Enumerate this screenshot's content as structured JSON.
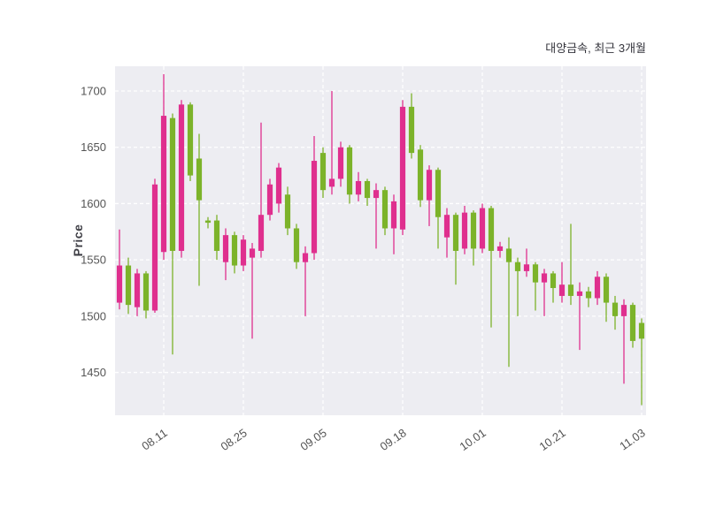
{
  "header": {
    "title": "대양금속, 최근 3개월"
  },
  "chart_data": {
    "type": "candlestick",
    "title": "대양금속, 최근 3개월",
    "xlabel": "",
    "ylabel": "Price",
    "ylim": [
      1412,
      1722
    ],
    "y_ticks": [
      1450,
      1500,
      1550,
      1600,
      1650,
      1700
    ],
    "x_tick_indices": [
      5,
      14,
      23,
      32,
      41,
      50,
      59
    ],
    "x_tick_labels": [
      "08.11",
      "08.25",
      "09.05",
      "09.18",
      "10.01",
      "10.21",
      "11.03"
    ],
    "grid": "on",
    "legend": "none",
    "colors": {
      "up": "#df2f8e",
      "down": "#7cb32a",
      "plot_bg": "#ededf2",
      "grid": "#ffffff",
      "tick_text": "#555555",
      "title_text": "#33333b"
    },
    "candles": [
      [
        "08.04",
        1512,
        1577,
        1506,
        1545
      ],
      [
        "08.05",
        1545,
        1552,
        1502,
        1510
      ],
      [
        "08.06",
        1508,
        1542,
        1500,
        1538
      ],
      [
        "08.07",
        1538,
        1540,
        1498,
        1505
      ],
      [
        "08.08",
        1505,
        1622,
        1503,
        1617
      ],
      [
        "08.11",
        1557,
        1715,
        1550,
        1678
      ],
      [
        "08.12",
        1676,
        1680,
        1466,
        1558
      ],
      [
        "08.13",
        1558,
        1692,
        1552,
        1688
      ],
      [
        "08.14",
        1688,
        1690,
        1620,
        1625
      ],
      [
        "08.18",
        1640,
        1662,
        1527,
        1603
      ],
      [
        "08.19",
        1585,
        1588,
        1578,
        1583
      ],
      [
        "08.20",
        1585,
        1590,
        1550,
        1558
      ],
      [
        "08.21",
        1548,
        1578,
        1532,
        1572
      ],
      [
        "08.22",
        1572,
        1575,
        1538,
        1545
      ],
      [
        "08.25",
        1545,
        1572,
        1540,
        1568
      ],
      [
        "08.26",
        1552,
        1565,
        1480,
        1560
      ],
      [
        "08.27",
        1558,
        1672,
        1552,
        1590
      ],
      [
        "08.28",
        1590,
        1622,
        1585,
        1617
      ],
      [
        "08.29",
        1600,
        1636,
        1592,
        1632
      ],
      [
        "09.01",
        1608,
        1615,
        1572,
        1578
      ],
      [
        "09.02",
        1578,
        1582,
        1542,
        1548
      ],
      [
        "09.03",
        1548,
        1562,
        1500,
        1556
      ],
      [
        "09.04",
        1556,
        1660,
        1550,
        1638
      ],
      [
        "09.05",
        1645,
        1650,
        1605,
        1612
      ],
      [
        "09.08",
        1615,
        1700,
        1608,
        1622
      ],
      [
        "09.09",
        1622,
        1655,
        1615,
        1650
      ],
      [
        "09.10",
        1650,
        1652,
        1600,
        1608
      ],
      [
        "09.11",
        1608,
        1628,
        1602,
        1620
      ],
      [
        "09.12",
        1620,
        1622,
        1598,
        1605
      ],
      [
        "09.15",
        1605,
        1618,
        1560,
        1612
      ],
      [
        "09.16",
        1612,
        1615,
        1572,
        1578
      ],
      [
        "09.17",
        1578,
        1608,
        1555,
        1602
      ],
      [
        "09.18",
        1577,
        1692,
        1572,
        1686
      ],
      [
        "09.19",
        1686,
        1698,
        1640,
        1645
      ],
      [
        "09.22",
        1648,
        1652,
        1597,
        1603
      ],
      [
        "09.23",
        1603,
        1634,
        1580,
        1630
      ],
      [
        "09.24",
        1630,
        1632,
        1560,
        1588
      ],
      [
        "09.25",
        1570,
        1596,
        1552,
        1590
      ],
      [
        "09.26",
        1590,
        1592,
        1528,
        1558
      ],
      [
        "09.29",
        1560,
        1598,
        1555,
        1592
      ],
      [
        "09.30",
        1592,
        1594,
        1545,
        1560
      ],
      [
        "10.01",
        1560,
        1600,
        1556,
        1596
      ],
      [
        "10.02",
        1596,
        1598,
        1490,
        1558
      ],
      [
        "10.10",
        1558,
        1566,
        1552,
        1562
      ],
      [
        "10.13",
        1560,
        1570,
        1455,
        1548
      ],
      [
        "10.14",
        1548,
        1552,
        1500,
        1540
      ],
      [
        "10.15",
        1540,
        1560,
        1535,
        1546
      ],
      [
        "10.16",
        1546,
        1548,
        1505,
        1530
      ],
      [
        "10.17",
        1530,
        1542,
        1500,
        1538
      ],
      [
        "10.20",
        1538,
        1540,
        1512,
        1525
      ],
      [
        "10.21",
        1518,
        1548,
        1512,
        1528
      ],
      [
        "10.22",
        1528,
        1582,
        1510,
        1518
      ],
      [
        "10.23",
        1518,
        1530,
        1470,
        1522
      ],
      [
        "10.24",
        1522,
        1526,
        1508,
        1516
      ],
      [
        "10.27",
        1516,
        1540,
        1510,
        1535
      ],
      [
        "10.28",
        1535,
        1538,
        1495,
        1512
      ],
      [
        "10.29",
        1512,
        1518,
        1488,
        1500
      ],
      [
        "10.30",
        1500,
        1515,
        1440,
        1510
      ],
      [
        "10.31",
        1510,
        1512,
        1472,
        1478
      ],
      [
        "11.03",
        1494,
        1498,
        1421,
        1480
      ]
    ]
  }
}
